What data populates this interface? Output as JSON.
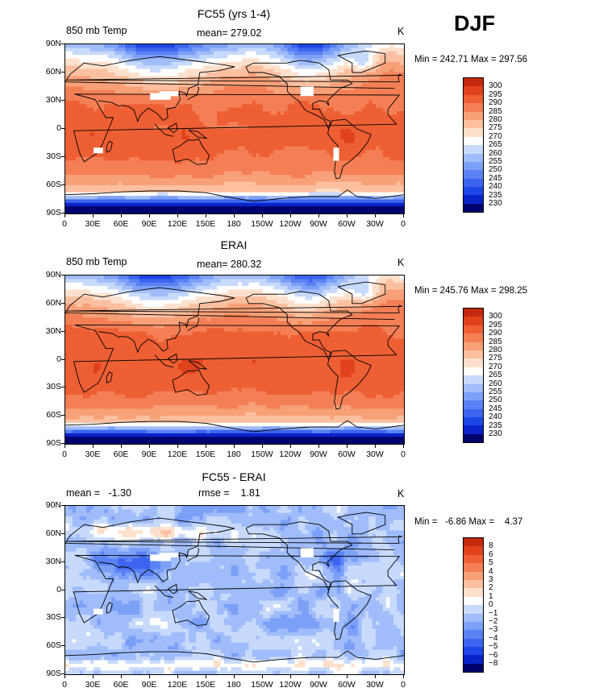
{
  "season": "DJF",
  "axes": {
    "lat_labels": [
      "90N",
      "60N",
      "30N",
      "0",
      "30S",
      "60S",
      "90S"
    ],
    "lon_labels": [
      "0",
      "30E",
      "60E",
      "90E",
      "120E",
      "150E",
      "180",
      "150W",
      "120W",
      "90W",
      "60W",
      "30W",
      "0"
    ]
  },
  "colors": {
    "temp": [
      "#00006e",
      "#0a23c8",
      "#1e46e6",
      "#3c64f0",
      "#5a82f5",
      "#7ca0f8",
      "#a0bcfa",
      "#c8dafc",
      "#ffffff",
      "#fde0cc",
      "#fcc0a0",
      "#f8a078",
      "#f47f55",
      "#ee5f34",
      "#e0421c",
      "#c4280e",
      "#8c0a00"
    ],
    "diff": [
      "#00006e",
      "#0a23c8",
      "#1e46e6",
      "#3c64f0",
      "#5a82f5",
      "#7ca0f8",
      "#a0bcfa",
      "#c8dafc",
      "#ffffff",
      "#fde0cc",
      "#fcc0a0",
      "#f8a078",
      "#f47f55",
      "#ee5f34",
      "#e0421c",
      "#c4280e",
      "#8c0a00"
    ]
  },
  "panels": [
    {
      "title": "FC55 (yrs 1-4)",
      "left_label": "850 mb Temp",
      "center_label": "mean= 279.02",
      "unit": "K",
      "minmax": "Min = 242.71 Max = 297.56",
      "colorbar": [
        "300",
        "295",
        "290",
        "285",
        "280",
        "275",
        "270",
        "265",
        "260",
        "255",
        "250",
        "245",
        "240",
        "235",
        "230"
      ]
    },
    {
      "title": "ERAI",
      "left_label": "850 mb Temp",
      "center_label": "mean= 280.32",
      "unit": "K",
      "minmax": "Min = 245.76 Max = 298.25",
      "colorbar": [
        "300",
        "295",
        "290",
        "285",
        "280",
        "275",
        "270",
        "265",
        "260",
        "255",
        "250",
        "245",
        "240",
        "235",
        "230"
      ]
    },
    {
      "title": "FC55 - ERAI",
      "left_label": "mean =   -1.30",
      "center_label": "rmse =    1.81",
      "unit": "K",
      "minmax": "Min =   -6.86 Max =    4.37",
      "colorbar": [
        "8",
        "6",
        "5",
        "4",
        "3",
        "2",
        "1",
        "0",
        "−1",
        "−2",
        "−3",
        "−4",
        "−5",
        "−6",
        "−8"
      ]
    }
  ],
  "chart_data": [
    {
      "type": "heatmap",
      "title": "FC55 (yrs 1-4)",
      "variable": "850 mb Temp",
      "unit": "K",
      "mean": 279.02,
      "min": 242.71,
      "max": 297.56,
      "lat_range": [
        -90,
        90
      ],
      "lon_range": [
        0,
        360
      ],
      "contour_levels": [
        230,
        235,
        240,
        245,
        250,
        255,
        260,
        265,
        270,
        275,
        280,
        285,
        290,
        295,
        300
      ]
    },
    {
      "type": "heatmap",
      "title": "ERAI",
      "variable": "850 mb Temp",
      "unit": "K",
      "mean": 280.32,
      "min": 245.76,
      "max": 298.25,
      "lat_range": [
        -90,
        90
      ],
      "lon_range": [
        0,
        360
      ],
      "contour_levels": [
        230,
        235,
        240,
        245,
        250,
        255,
        260,
        265,
        270,
        275,
        280,
        285,
        290,
        295,
        300
      ]
    },
    {
      "type": "heatmap",
      "title": "FC55 - ERAI",
      "unit": "K",
      "mean": -1.3,
      "rmse": 1.81,
      "min": -6.86,
      "max": 4.37,
      "lat_range": [
        -90,
        90
      ],
      "lon_range": [
        0,
        360
      ],
      "contour_levels": [
        -8,
        -6,
        -5,
        -4,
        -3,
        -2,
        -1,
        0,
        1,
        2,
        3,
        4,
        5,
        6,
        8
      ]
    }
  ]
}
